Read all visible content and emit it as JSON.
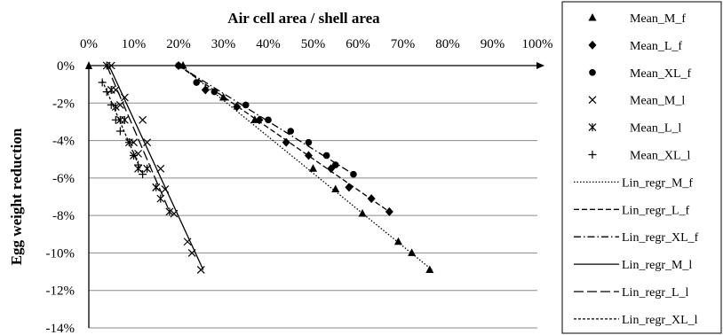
{
  "chart_data": {
    "type": "scatter",
    "xlabel": "Air cell area / shell area",
    "ylabel": "Egg weight reduction",
    "x_axis_position": "top",
    "x_ticks": [
      "0%",
      "10%",
      "20%",
      "30%",
      "40%",
      "50%",
      "60%",
      "70%",
      "80%",
      "90%",
      "100%"
    ],
    "y_ticks": [
      "0%",
      "-2%",
      "-4%",
      "-6%",
      "-8%",
      "-10%",
      "-12%",
      "-14%"
    ],
    "xlim": [
      0,
      1.0
    ],
    "ylim": [
      -0.14,
      0
    ],
    "grid": "horizontal",
    "legend_position": "right",
    "series": [
      {
        "name": "Mean_M_f",
        "marker": "triangle",
        "points": [
          [
            0.21,
            0
          ],
          [
            0.3,
            -0.017
          ],
          [
            0.37,
            -0.029
          ],
          [
            0.5,
            -0.055
          ],
          [
            0.55,
            -0.066
          ],
          [
            0.61,
            -0.079
          ],
          [
            0.69,
            -0.094
          ],
          [
            0.72,
            -0.1
          ],
          [
            0.76,
            -0.109
          ]
        ]
      },
      {
        "name": "Mean_L_f",
        "marker": "diamond",
        "points": [
          [
            0.2,
            0
          ],
          [
            0.26,
            -0.013
          ],
          [
            0.33,
            -0.022
          ],
          [
            0.38,
            -0.029
          ],
          [
            0.44,
            -0.041
          ],
          [
            0.49,
            -0.048
          ],
          [
            0.54,
            -0.055
          ],
          [
            0.58,
            -0.065
          ],
          [
            0.63,
            -0.071
          ],
          [
            0.67,
            -0.078
          ]
        ]
      },
      {
        "name": "Mean_XL_f",
        "marker": "circle",
        "points": [
          [
            0.2,
            0
          ],
          [
            0.24,
            -0.009
          ],
          [
            0.28,
            -0.014
          ],
          [
            0.35,
            -0.021
          ],
          [
            0.4,
            -0.029
          ],
          [
            0.45,
            -0.035
          ],
          [
            0.49,
            -0.041
          ],
          [
            0.53,
            -0.048
          ],
          [
            0.55,
            -0.053
          ],
          [
            0.59,
            -0.058
          ]
        ]
      },
      {
        "name": "Mean_M_l",
        "marker": "x",
        "points": [
          [
            0.05,
            0
          ],
          [
            0.06,
            -0.013
          ],
          [
            0.07,
            -0.021
          ],
          [
            0.08,
            -0.017
          ],
          [
            0.1,
            -0.041
          ],
          [
            0.11,
            -0.047
          ],
          [
            0.12,
            -0.029
          ],
          [
            0.13,
            -0.041
          ],
          [
            0.15,
            -0.065
          ],
          [
            0.16,
            -0.055
          ],
          [
            0.17,
            -0.066
          ],
          [
            0.19,
            -0.079
          ],
          [
            0.22,
            -0.094
          ],
          [
            0.23,
            -0.1
          ],
          [
            0.25,
            -0.109
          ]
        ]
      },
      {
        "name": "Mean_L_l",
        "marker": "asterisk",
        "points": [
          [
            0.04,
            0
          ],
          [
            0.05,
            -0.013
          ],
          [
            0.06,
            -0.022
          ],
          [
            0.07,
            -0.029
          ],
          [
            0.08,
            -0.029
          ],
          [
            0.09,
            -0.041
          ],
          [
            0.1,
            -0.048
          ],
          [
            0.11,
            -0.055
          ],
          [
            0.13,
            -0.055
          ],
          [
            0.15,
            -0.065
          ],
          [
            0.16,
            -0.071
          ],
          [
            0.18,
            -0.078
          ]
        ]
      },
      {
        "name": "Mean_XL_l",
        "marker": "plus",
        "points": [
          [
            0.03,
            -0.009
          ],
          [
            0.04,
            -0.014
          ],
          [
            0.05,
            -0.021
          ],
          [
            0.06,
            -0.029
          ],
          [
            0.07,
            -0.035
          ],
          [
            0.09,
            -0.041
          ],
          [
            0.1,
            -0.048
          ],
          [
            0.11,
            -0.053
          ],
          [
            0.12,
            -0.058
          ]
        ]
      },
      {
        "name": "Lin_regr_M_f",
        "line": "dotted",
        "points": [
          [
            0.205,
            0
          ],
          [
            0.765,
            -0.109
          ]
        ]
      },
      {
        "name": "Lin_regr_L_f",
        "line": "dashed",
        "points": [
          [
            0.2,
            0
          ],
          [
            0.67,
            -0.078
          ]
        ]
      },
      {
        "name": "Lin_regr_XL_f",
        "line": "dashdot",
        "points": [
          [
            0.2,
            0
          ],
          [
            0.59,
            -0.058
          ]
        ]
      },
      {
        "name": "Lin_regr_M_l",
        "line": "solid",
        "points": [
          [
            0.045,
            0
          ],
          [
            0.255,
            -0.109
          ]
        ]
      },
      {
        "name": "Lin_regr_L_l",
        "line": "longdash",
        "points": [
          [
            0.04,
            0
          ],
          [
            0.18,
            -0.078
          ]
        ]
      },
      {
        "name": "Lin_regr_XL_l",
        "line": "shortdash",
        "points": [
          [
            0.03,
            -0.008
          ],
          [
            0.12,
            -0.058
          ]
        ]
      }
    ]
  }
}
